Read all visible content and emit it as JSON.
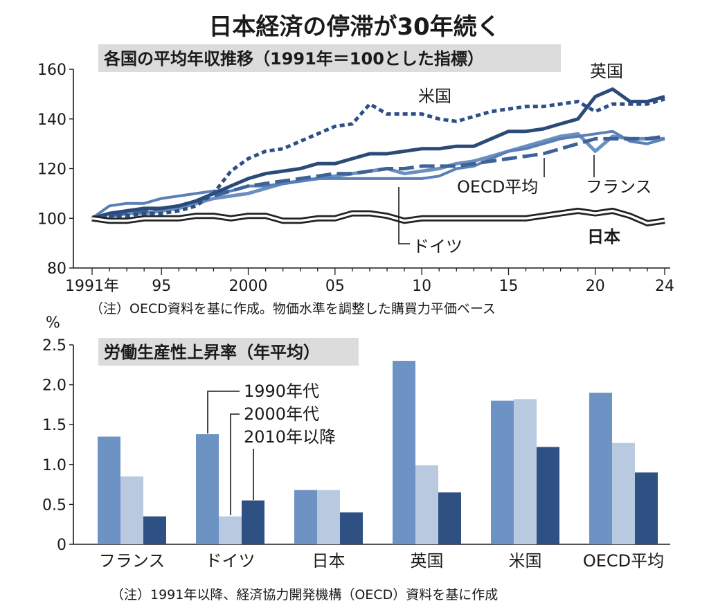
{
  "title": "日本経済の停滞が30年続く",
  "colors": {
    "france": "#6a8fc0",
    "germany": "#5a7fb6",
    "japan": "#222222",
    "uk": "#2b4a78",
    "us": "#2c4f86",
    "oecd": "#3c6298",
    "bar_1990s": "#6d93c4",
    "bar_2000s": "#b9cae0",
    "bar_2010s": "#2f5082"
  },
  "chart_data": [
    {
      "type": "line",
      "title": "各国の平均年収推移（1991年＝100とした指標）",
      "note": "（注）OECD資料を基に作成。物価水準を調整した購買力平価ベース",
      "x_tick_labels": [
        "1991年",
        "95",
        "2000",
        "05",
        "10",
        "15",
        "20",
        "24"
      ],
      "y_tick_labels": [
        "160",
        "140",
        "120",
        "100",
        "80"
      ],
      "ylim": [
        80,
        160
      ],
      "x": [
        1991,
        1992,
        1993,
        1994,
        1995,
        1996,
        1997,
        1998,
        1999,
        2000,
        2001,
        2002,
        2003,
        2004,
        2005,
        2006,
        2007,
        2008,
        2009,
        2010,
        2011,
        2012,
        2013,
        2014,
        2015,
        2016,
        2017,
        2018,
        2019,
        2020,
        2021,
        2022,
        2023,
        2024
      ],
      "series": [
        {
          "name": "英国",
          "values": [
            100,
            102,
            103,
            104,
            104,
            105,
            107,
            110,
            113,
            116,
            118,
            119,
            120,
            122,
            122,
            124,
            126,
            126,
            127,
            128,
            128,
            129,
            129,
            132,
            135,
            135,
            136,
            138,
            140,
            149,
            152,
            147,
            147,
            149
          ]
        },
        {
          "name": "米国",
          "values": [
            100,
            101,
            101,
            102,
            102,
            103,
            105,
            110,
            119,
            124,
            127,
            128,
            131,
            134,
            137,
            138,
            146,
            142,
            142,
            142,
            140,
            139,
            141,
            143,
            144,
            145,
            145,
            146,
            147,
            143,
            146,
            146,
            146,
            148
          ]
        },
        {
          "name": "フランス",
          "values": [
            100,
            102,
            102,
            102,
            103,
            104,
            106,
            108,
            109,
            110,
            112,
            114,
            115,
            116,
            117,
            118,
            119,
            120,
            118,
            119,
            120,
            122,
            123,
            125,
            127,
            129,
            131,
            133,
            134,
            127,
            133,
            132,
            132,
            132
          ]
        },
        {
          "name": "ドイツ",
          "values": [
            100,
            105,
            106,
            106,
            108,
            109,
            110,
            111,
            111,
            113,
            113,
            114,
            115,
            116,
            116,
            116,
            116,
            116,
            116,
            116,
            117,
            120,
            121,
            124,
            127,
            128,
            130,
            132,
            133,
            134,
            135,
            131,
            130,
            132
          ]
        },
        {
          "name": "OECD平均",
          "values": [
            100,
            101,
            102,
            103,
            104,
            105,
            107,
            109,
            111,
            113,
            114,
            115,
            116,
            117,
            118,
            118,
            119,
            120,
            120,
            121,
            121,
            121,
            122,
            123,
            124,
            125,
            126,
            128,
            130,
            132,
            132,
            132,
            132,
            133
          ]
        },
        {
          "name": "日本",
          "values": [
            100,
            99,
            99,
            100,
            100,
            100,
            101,
            101,
            100,
            101,
            101,
            99,
            99,
            100,
            100,
            102,
            102,
            101,
            99,
            100,
            100,
            100,
            100,
            100,
            100,
            100,
            101,
            102,
            103,
            102,
            103,
            101,
            98,
            99
          ]
        }
      ],
      "line_labels": {
        "uk": "英国",
        "us": "米国",
        "oecd": "OECD平均",
        "france": "フランス",
        "germany": "ドイツ",
        "japan": "日本"
      }
    },
    {
      "type": "bar",
      "title": "労働生産性上昇率（年平均）",
      "y_unit": "%",
      "note": "（注）1991年以降、経済協力開発機構（OECD）資料を基に作成",
      "y_tick_labels": [
        "2.5",
        "2.0",
        "1.5",
        "1.0",
        "0.5",
        "0"
      ],
      "ylim": [
        0,
        2.5
      ],
      "categories": [
        "フランス",
        "ドイツ",
        "日本",
        "英国",
        "米国",
        "OECD平均"
      ],
      "series": [
        {
          "name": "1990年代",
          "values": [
            1.35,
            1.38,
            0.68,
            2.3,
            1.8,
            1.9
          ]
        },
        {
          "name": "2000年代",
          "values": [
            0.85,
            0.35,
            0.68,
            0.99,
            1.82,
            1.27
          ]
        },
        {
          "name": "2010年以降",
          "values": [
            0.35,
            0.55,
            0.4,
            0.65,
            1.22,
            0.9
          ]
        }
      ]
    }
  ]
}
